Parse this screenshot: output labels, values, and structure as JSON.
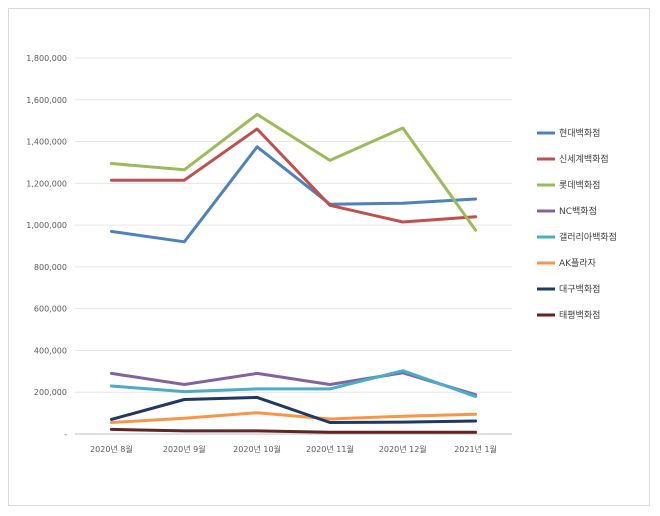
{
  "chart_data": {
    "type": "line",
    "title": "",
    "xlabel": "",
    "ylabel": "",
    "categories": [
      "2020년 8월",
      "2020년 9월",
      "2020년 10월",
      "2020년 11월",
      "2020년 12월",
      "2021년 1월"
    ],
    "ylim": [
      0,
      1800000
    ],
    "yticks": [
      0,
      200000,
      400000,
      600000,
      800000,
      1000000,
      1200000,
      1400000,
      1600000,
      1800000
    ],
    "ytick_labels": [
      "-",
      "200,000",
      "400,000",
      "600,000",
      "800,000",
      "1,000,000",
      "1,200,000",
      "1,400,000",
      "1,600,000",
      "1,800,000"
    ],
    "grid": true,
    "legend_position": "right",
    "series": [
      {
        "name": "현대백화점",
        "color": "#4F81BD",
        "values": [
          970000,
          920000,
          1375000,
          1100000,
          1105000,
          1125000
        ]
      },
      {
        "name": "신세계백화점",
        "color": "#C0504D",
        "values": [
          1215000,
          1215000,
          1460000,
          1095000,
          1015000,
          1040000
        ]
      },
      {
        "name": "롯데백화점",
        "color": "#9BBB59",
        "values": [
          1295000,
          1265000,
          1530000,
          1310000,
          1465000,
          975000
        ]
      },
      {
        "name": "NC백화점",
        "color": "#8064A2",
        "values": [
          290000,
          237000,
          290000,
          237000,
          293000,
          188000
        ]
      },
      {
        "name": "갤러리아백화점",
        "color": "#4BACC6",
        "values": [
          230000,
          203000,
          216000,
          216000,
          303000,
          180000
        ]
      },
      {
        "name": "AK플라자",
        "color": "#F79646",
        "values": [
          55000,
          75000,
          102000,
          72000,
          85000,
          95000
        ]
      },
      {
        "name": "대구백화점",
        "color": "#1F3864",
        "values": [
          70000,
          165000,
          175000,
          55000,
          57000,
          62000
        ]
      },
      {
        "name": "태평백화점",
        "color": "#632523",
        "values": [
          22000,
          15000,
          15000,
          8000,
          8000,
          8000
        ]
      }
    ]
  }
}
